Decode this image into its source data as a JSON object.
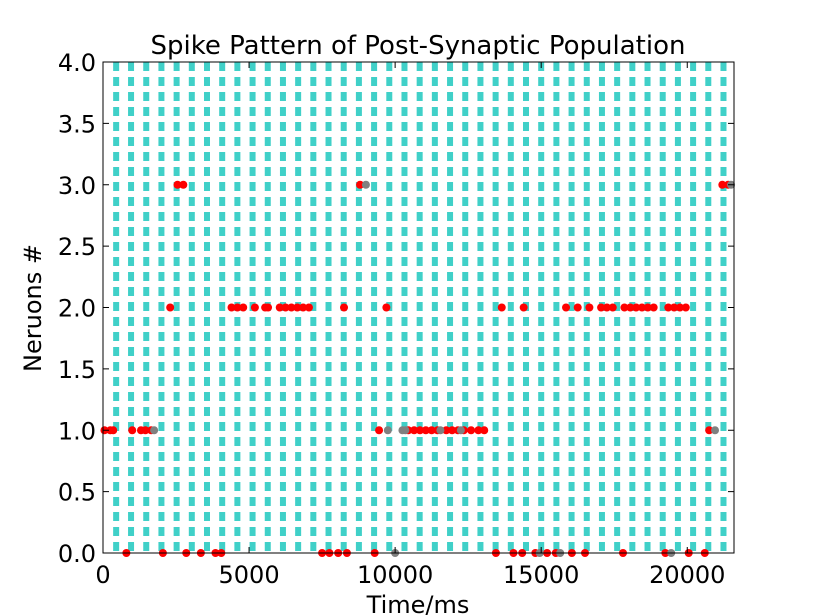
{
  "chart_data": {
    "type": "scatter",
    "title": "Spike Pattern of Post-Synaptic Population",
    "xlabel": "Time/ms",
    "ylabel": "Neruons #",
    "xlim": [
      0,
      21600
    ],
    "ylim": [
      0,
      4.0
    ],
    "xticks": [
      0,
      5000,
      10000,
      15000,
      20000
    ],
    "yticks": [
      0.0,
      0.5,
      1.0,
      1.5,
      2.0,
      2.5,
      3.0,
      3.5,
      4.0
    ],
    "ytick_labels": [
      "0.0",
      "0.5",
      "1.0",
      "1.5",
      "2.0",
      "2.5",
      "3.0",
      "3.5",
      "4.0"
    ],
    "grid": "vertical dashed lines",
    "vertical_line_times": [
      450,
      960,
      1480,
      2000,
      2520,
      3040,
      3560,
      4080,
      4600,
      5120,
      5640,
      6160,
      6680,
      7200,
      7720,
      8240,
      8760,
      9280,
      9800,
      10320,
      10840,
      11360,
      11880,
      12400,
      12920,
      13440,
      13960,
      14480,
      15000,
      15520,
      16040,
      16560,
      17080,
      17600,
      18120,
      18640,
      19160,
      19680,
      20200,
      20720,
      21240
    ],
    "series": [
      {
        "color": "#ff0000",
        "points": [
          [
            50,
            1.0
          ],
          [
            250,
            1.0
          ],
          [
            350,
            1.0
          ],
          [
            1000,
            1.0
          ],
          [
            1300,
            1.0
          ],
          [
            1450,
            1.0
          ],
          [
            1650,
            1.0
          ],
          [
            2300,
            2.0
          ],
          [
            2550,
            3.0
          ],
          [
            2750,
            3.0
          ],
          [
            4400,
            2.0
          ],
          [
            4600,
            2.0
          ],
          [
            4800,
            2.0
          ],
          [
            5200,
            2.0
          ],
          [
            5550,
            2.0
          ],
          [
            5650,
            2.0
          ],
          [
            6050,
            2.0
          ],
          [
            6250,
            2.0
          ],
          [
            6450,
            2.0
          ],
          [
            6650,
            2.0
          ],
          [
            6850,
            2.0
          ],
          [
            7050,
            2.0
          ],
          [
            8250,
            2.0
          ],
          [
            8800,
            3.0
          ],
          [
            9450,
            1.0
          ],
          [
            9700,
            2.0
          ],
          [
            10450,
            1.0
          ],
          [
            10650,
            1.0
          ],
          [
            10850,
            1.0
          ],
          [
            11050,
            1.0
          ],
          [
            11250,
            1.0
          ],
          [
            11450,
            1.0
          ],
          [
            11750,
            1.0
          ],
          [
            11950,
            1.0
          ],
          [
            12150,
            1.0
          ],
          [
            12350,
            1.0
          ],
          [
            12600,
            1.0
          ],
          [
            12850,
            1.0
          ],
          [
            13050,
            1.0
          ],
          [
            13650,
            2.0
          ],
          [
            14400,
            2.0
          ],
          [
            15850,
            2.0
          ],
          [
            16250,
            2.0
          ],
          [
            16650,
            2.0
          ],
          [
            17050,
            2.0
          ],
          [
            17250,
            2.0
          ],
          [
            17450,
            2.0
          ],
          [
            17850,
            2.0
          ],
          [
            18050,
            2.0
          ],
          [
            18250,
            2.0
          ],
          [
            18450,
            2.0
          ],
          [
            18650,
            2.0
          ],
          [
            18850,
            2.0
          ],
          [
            19350,
            2.0
          ],
          [
            19550,
            2.0
          ],
          [
            19750,
            2.0
          ],
          [
            19950,
            2.0
          ],
          [
            20750,
            1.0
          ],
          [
            21200,
            3.0
          ],
          [
            21400,
            3.0
          ],
          [
            800,
            0.0
          ],
          [
            2050,
            0.0
          ],
          [
            2850,
            0.0
          ],
          [
            3350,
            0.0
          ],
          [
            3850,
            0.0
          ],
          [
            4050,
            0.0
          ],
          [
            7500,
            0.0
          ],
          [
            7750,
            0.0
          ],
          [
            8050,
            0.0
          ],
          [
            8350,
            0.0
          ],
          [
            9300,
            0.0
          ],
          [
            13450,
            0.0
          ],
          [
            14050,
            0.0
          ],
          [
            14350,
            0.0
          ],
          [
            14800,
            0.0
          ],
          [
            15200,
            0.0
          ],
          [
            15500,
            0.0
          ],
          [
            16050,
            0.0
          ],
          [
            16500,
            0.0
          ],
          [
            17800,
            0.0
          ],
          [
            19250,
            0.0
          ],
          [
            20050,
            0.0
          ],
          [
            20600,
            0.0
          ]
        ]
      },
      {
        "color": "#808080",
        "points": [
          [
            1750,
            1.0
          ],
          [
            9000,
            3.0
          ],
          [
            9750,
            1.0
          ],
          [
            10250,
            1.0
          ],
          [
            10350,
            1.0
          ],
          [
            11550,
            1.0
          ],
          [
            12250,
            1.0
          ],
          [
            20950,
            1.0
          ],
          [
            21500,
            3.0
          ],
          [
            10000,
            0.0
          ],
          [
            14950,
            0.0
          ],
          [
            15650,
            0.0
          ],
          [
            19450,
            0.0
          ]
        ]
      }
    ]
  }
}
